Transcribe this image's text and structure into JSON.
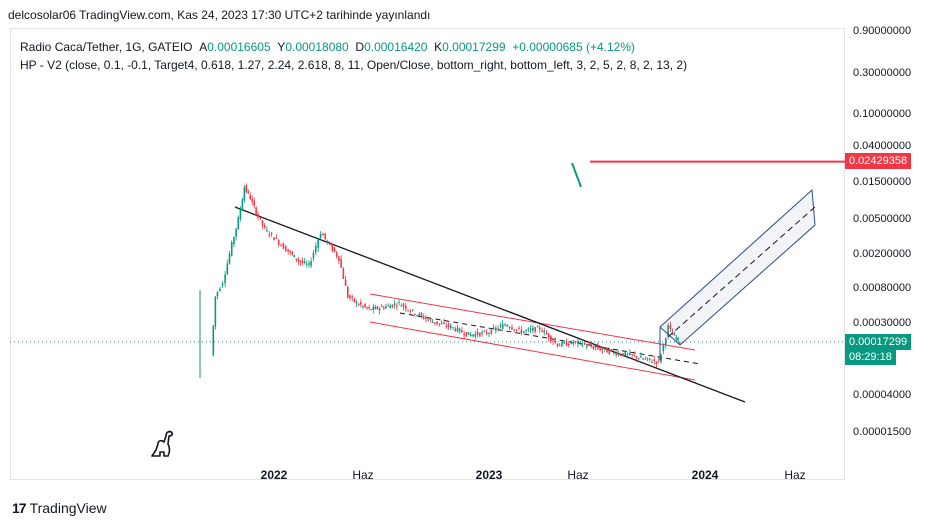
{
  "published": "delcosolar06 TradingView.com, Kas 24, 2023 17:30 UTC+2 tarihinde yayınlandı",
  "legend": {
    "symbol": "Radio Caca/Tether, 1G, GATEIO",
    "o_label": "A",
    "o": "0.00016605",
    "h_label": "Y",
    "h": "0.00018080",
    "l_label": "D",
    "l": "0.00016420",
    "c_label": "K",
    "c": "0.00017299",
    "change": "+0.00000685 (+4.12%)",
    "indicator": "HP - V2 (close, 0.1, -0.1, Target4, 0.618, 1.27, 2.24, 2.618, 8, 11, Open/Close, bottom_right, bottom_left, 3, 2, 5, 2, 8, 2, 13, 2)"
  },
  "tags": {
    "target_price": "0.02429358",
    "last_price": "0.00017299",
    "countdown": "08:29:18"
  },
  "colors": {
    "up": "#089981",
    "down": "#f23645",
    "channel_red": "#f23645",
    "channel_blue": "#2a4a8a",
    "trendline": "#131722",
    "price_line": "#089981"
  },
  "brand": "TradingView",
  "chart_data": {
    "type": "candlestick",
    "y_scale": "log",
    "yticks": [
      "0.90000000",
      "0.30000000",
      "0.10000000",
      "0.04000000",
      "0.01500000",
      "0.00500000",
      "0.00200000",
      "0.00080000",
      "0.00030000",
      "0.00004000",
      "0.00001500"
    ],
    "xticks": [
      {
        "label": "2022",
        "bold": true
      },
      {
        "label": "Haz",
        "bold": false
      },
      {
        "label": "2023",
        "bold": true
      },
      {
        "label": "Haz",
        "bold": false
      },
      {
        "label": "2024",
        "bold": true
      },
      {
        "label": "Haz",
        "bold": false
      }
    ],
    "series": [
      {
        "date": "2021-09-20",
        "close": 0.00012
      },
      {
        "date": "2021-09-27",
        "close": 0.0006
      },
      {
        "date": "2021-10-10",
        "close": 0.0009
      },
      {
        "date": "2021-10-25",
        "close": 0.0025
      },
      {
        "date": "2021-11-05",
        "close": 0.005
      },
      {
        "date": "2021-11-15",
        "close": 0.012
      },
      {
        "date": "2021-11-25",
        "close": 0.009
      },
      {
        "date": "2021-12-05",
        "close": 0.006
      },
      {
        "date": "2021-12-20",
        "close": 0.0038
      },
      {
        "date": "2022-01-05",
        "close": 0.003
      },
      {
        "date": "2022-01-25",
        "close": 0.0022
      },
      {
        "date": "2022-02-15",
        "close": 0.0016
      },
      {
        "date": "2022-03-05",
        "close": 0.0014
      },
      {
        "date": "2022-03-25",
        "close": 0.0035
      },
      {
        "date": "2022-04-10",
        "close": 0.0024
      },
      {
        "date": "2022-04-25",
        "close": 0.0017
      },
      {
        "date": "2022-05-10",
        "close": 0.0006
      },
      {
        "date": "2022-05-25",
        "close": 0.0005
      },
      {
        "date": "2022-06-15",
        "close": 0.00042
      },
      {
        "date": "2022-07-10",
        "close": 0.00045
      },
      {
        "date": "2022-08-05",
        "close": 0.0005
      },
      {
        "date": "2022-09-01",
        "close": 0.00038
      },
      {
        "date": "2022-10-01",
        "close": 0.0003
      },
      {
        "date": "2022-11-01",
        "close": 0.00026
      },
      {
        "date": "2022-12-01",
        "close": 0.00021
      },
      {
        "date": "2023-01-01",
        "close": 0.00022
      },
      {
        "date": "2023-02-01",
        "close": 0.00028
      },
      {
        "date": "2023-03-01",
        "close": 0.00023
      },
      {
        "date": "2023-04-01",
        "close": 0.00025
      },
      {
        "date": "2023-05-01",
        "close": 0.00016
      },
      {
        "date": "2023-06-01",
        "close": 0.00017
      },
      {
        "date": "2023-07-01",
        "close": 0.00015
      },
      {
        "date": "2023-08-01",
        "close": 0.00013
      },
      {
        "date": "2023-09-01",
        "close": 0.00012
      },
      {
        "date": "2023-10-01",
        "close": 0.000105
      },
      {
        "date": "2023-10-20",
        "close": 0.0001
      },
      {
        "date": "2023-11-05",
        "close": 0.00026
      },
      {
        "date": "2023-11-12",
        "close": 0.00021
      },
      {
        "date": "2023-11-18",
        "close": 0.00019
      },
      {
        "date": "2023-11-24",
        "close": 0.00017299
      }
    ],
    "target_level": 0.02429358
  }
}
